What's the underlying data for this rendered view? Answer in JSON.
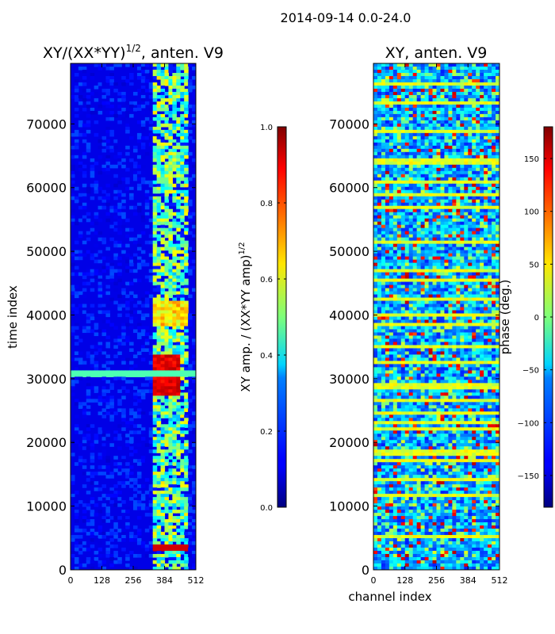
{
  "figure_title": "2014-09-14 0.0-24.0",
  "chart_data": [
    {
      "type": "heatmap",
      "title_main": "XY/(XX*YY)",
      "title_sup": "1/2",
      "title_suffix": ", anten. V9",
      "ylabel": "time index",
      "xlabel": "",
      "xlim": [
        0,
        512
      ],
      "ylim": [
        0,
        79500
      ],
      "xticks": [
        "0",
        "128",
        "256",
        "384",
        "512"
      ],
      "xtick_values": [
        0,
        128,
        256,
        384,
        512
      ],
      "yticks": [
        "0",
        "10000",
        "20000",
        "30000",
        "40000",
        "50000",
        "60000",
        "70000"
      ],
      "ytick_values": [
        0,
        10000,
        20000,
        30000,
        40000,
        50000,
        60000,
        70000
      ],
      "colorbar": {
        "label_main": "XY amp. / (XX*YY amp)",
        "label_sup": "1/2",
        "range": [
          0.0,
          1.0
        ],
        "ticks": [
          "0.0",
          "0.2",
          "0.4",
          "0.6",
          "0.8",
          "1.0"
        ],
        "tick_values": [
          0.0,
          0.2,
          0.4,
          0.6,
          0.8,
          1.0
        ]
      }
    },
    {
      "type": "heatmap",
      "title_main": "XY, anten. V9",
      "ylabel": "",
      "xlabel": "channel index",
      "xlim": [
        0,
        512
      ],
      "ylim": [
        0,
        79500
      ],
      "xticks": [
        "0",
        "128",
        "256",
        "384",
        "512"
      ],
      "xtick_values": [
        0,
        128,
        256,
        384,
        512
      ],
      "yticks": [
        "0",
        "10000",
        "20000",
        "30000",
        "40000",
        "50000",
        "60000",
        "70000"
      ],
      "ytick_values": [
        0,
        10000,
        20000,
        30000,
        40000,
        50000,
        60000,
        70000
      ],
      "colorbar": {
        "label_main": "phase (deg.)",
        "range": [
          -180,
          180
        ],
        "ticks": [
          "−150",
          "−100",
          "−50",
          "0",
          "50",
          "100",
          "150"
        ],
        "tick_values": [
          -150,
          -100,
          -50,
          0,
          50,
          100,
          150
        ]
      }
    }
  ]
}
